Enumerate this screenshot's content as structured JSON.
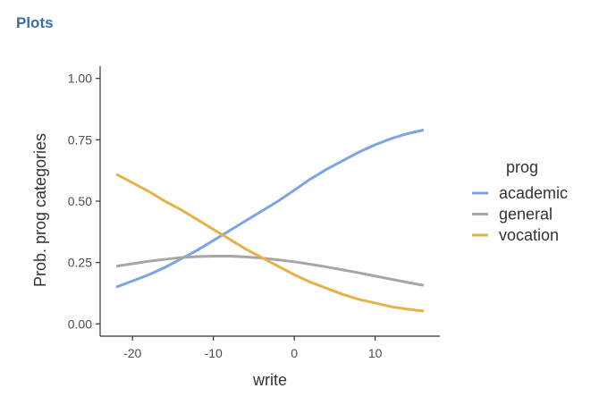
{
  "header": {
    "title": "Plots"
  },
  "chart_data": {
    "type": "line",
    "xlabel": "write",
    "ylabel": "Prob. prog categories",
    "xlim": [
      -24,
      18
    ],
    "ylim": [
      -0.05,
      1.05
    ],
    "xticks": [
      -20,
      -10,
      0,
      10
    ],
    "xtick_labels": [
      "-20",
      "-10",
      "0",
      "10"
    ],
    "yticks": [
      0,
      0.25,
      0.5,
      0.75,
      1.0
    ],
    "ytick_labels": [
      "0.00",
      "0.25",
      "0.50",
      "0.75",
      "1.00"
    ],
    "grid": false,
    "legend": {
      "title": "prog",
      "position": "right"
    },
    "x": [
      -22,
      -20,
      -18,
      -16,
      -14,
      -12,
      -10,
      -8,
      -6,
      -4,
      -2,
      0,
      2,
      4,
      6,
      8,
      10,
      12,
      14,
      16
    ],
    "series": [
      {
        "name": "academic",
        "color": "#7ba4e8",
        "values": [
          0.15,
          0.175,
          0.2,
          0.23,
          0.265,
          0.3,
          0.34,
          0.38,
          0.42,
          0.46,
          0.5,
          0.545,
          0.59,
          0.63,
          0.665,
          0.7,
          0.73,
          0.755,
          0.775,
          0.79
        ]
      },
      {
        "name": "general",
        "color": "#a6a6a6",
        "values": [
          0.235,
          0.245,
          0.255,
          0.263,
          0.27,
          0.274,
          0.276,
          0.276,
          0.273,
          0.268,
          0.261,
          0.253,
          0.243,
          0.232,
          0.22,
          0.208,
          0.195,
          0.182,
          0.169,
          0.157
        ]
      },
      {
        "name": "vocation",
        "color": "#e8b04a",
        "values": [
          0.61,
          0.575,
          0.54,
          0.5,
          0.465,
          0.425,
          0.385,
          0.345,
          0.305,
          0.27,
          0.235,
          0.2,
          0.17,
          0.145,
          0.12,
          0.1,
          0.085,
          0.07,
          0.06,
          0.052
        ]
      }
    ]
  }
}
